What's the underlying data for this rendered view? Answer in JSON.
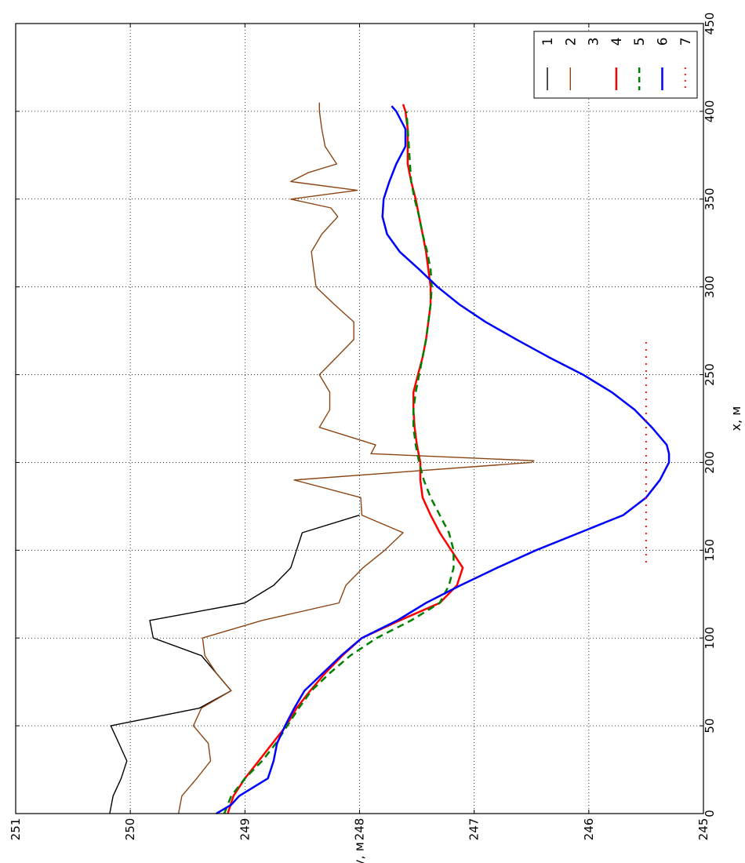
{
  "chart_data": {
    "type": "line",
    "orientation": "rotated-90-clockwise",
    "xlabel": "x, м",
    "ylabel": "y, м",
    "xlim": [
      0,
      450
    ],
    "ylim": [
      245,
      251
    ],
    "x_ticks": [
      "0",
      "50",
      "100",
      "150",
      "200",
      "250",
      "300",
      "350",
      "400",
      "450"
    ],
    "y_ticks": [
      "251",
      "250",
      "249",
      "248",
      "247",
      "246",
      "245"
    ],
    "grid": true,
    "legend_placement": "top-right",
    "series": [
      {
        "name": "1",
        "color": "#000000",
        "style": "solid",
        "width": 1.4,
        "x": [
          0,
          10,
          20,
          30,
          40,
          50,
          60,
          70,
          80,
          90,
          100,
          110,
          120,
          130,
          140,
          150,
          160,
          170
        ],
        "y": [
          250.18,
          250.15,
          250.08,
          250.03,
          250.1,
          250.17,
          249.4,
          249.12,
          249.25,
          249.38,
          249.8,
          249.83,
          249.0,
          248.75,
          248.6,
          248.55,
          248.5,
          248.0
        ]
      },
      {
        "name": "2",
        "color": "#8B4513",
        "style": "solid",
        "width": 1.4,
        "x": [
          0,
          10,
          20,
          30,
          40,
          50,
          60,
          70,
          80,
          90,
          100,
          110,
          120,
          130,
          140,
          150,
          160,
          170,
          180,
          190,
          200,
          201,
          205,
          210,
          220,
          230,
          240,
          250,
          260,
          270,
          280,
          290,
          300,
          310,
          320,
          330,
          340,
          345,
          350,
          355,
          360,
          365,
          370,
          380,
          390,
          400,
          405
        ],
        "y": [
          249.58,
          249.55,
          249.42,
          249.3,
          249.32,
          249.45,
          249.38,
          249.12,
          249.25,
          249.35,
          249.37,
          248.85,
          248.18,
          248.12,
          247.97,
          247.78,
          247.62,
          247.98,
          247.99,
          248.57,
          246.5,
          246.48,
          247.9,
          247.86,
          248.35,
          248.26,
          248.26,
          248.35,
          248.2,
          248.05,
          248.05,
          248.22,
          248.38,
          248.4,
          248.42,
          248.33,
          248.19,
          248.25,
          248.6,
          248.02,
          248.6,
          248.45,
          248.2,
          248.3,
          248.33,
          248.35,
          248.35
        ]
      },
      {
        "name": "3",
        "color": "#000000",
        "style": "none",
        "width": 0,
        "x": [],
        "y": []
      },
      {
        "name": "4",
        "color": "#ff0000",
        "style": "solid",
        "width": 2.5,
        "x": [
          0,
          10,
          20,
          30,
          40,
          50,
          60,
          70,
          80,
          90,
          100,
          110,
          120,
          130,
          140,
          150,
          160,
          170,
          180,
          190,
          200,
          210,
          220,
          230,
          240,
          250,
          260,
          270,
          280,
          290,
          300,
          310,
          320,
          330,
          340,
          350,
          360,
          370,
          380,
          390,
          400,
          404
        ],
        "y": [
          249.15,
          249.1,
          249.0,
          248.88,
          248.76,
          248.64,
          248.55,
          248.43,
          248.3,
          248.15,
          247.98,
          247.65,
          247.3,
          247.15,
          247.1,
          247.2,
          247.3,
          247.38,
          247.45,
          247.47,
          247.47,
          247.5,
          247.52,
          247.53,
          247.53,
          247.49,
          247.45,
          247.42,
          247.4,
          247.38,
          247.38,
          247.4,
          247.42,
          247.45,
          247.48,
          247.51,
          247.55,
          247.58,
          247.58,
          247.58,
          247.6,
          247.62
        ]
      },
      {
        "name": "5",
        "color": "#008000",
        "style": "dashed",
        "width": 2.5,
        "x": [
          0,
          10,
          20,
          30,
          40,
          50,
          60,
          70,
          80,
          90,
          100,
          110,
          120,
          130,
          140,
          150,
          160,
          170,
          180,
          190,
          200,
          210,
          220,
          230,
          240,
          250,
          260,
          270,
          280,
          290,
          300,
          310,
          320,
          330,
          340,
          350,
          360,
          370,
          380,
          390,
          400
        ],
        "y": [
          249.18,
          249.12,
          249.0,
          248.85,
          248.73,
          248.63,
          248.53,
          248.42,
          248.26,
          248.08,
          247.85,
          247.55,
          247.3,
          247.22,
          247.18,
          247.18,
          247.22,
          247.3,
          247.38,
          247.44,
          247.48,
          247.51,
          247.53,
          247.53,
          247.51,
          247.48,
          247.45,
          247.42,
          247.4,
          247.38,
          247.37,
          247.38,
          247.41,
          247.45,
          247.48,
          247.52,
          247.55,
          247.56,
          247.57,
          247.58,
          247.59
        ]
      },
      {
        "name": "6",
        "color": "#0000ff",
        "style": "solid",
        "width": 2.5,
        "x": [
          0,
          5,
          10,
          20,
          30,
          40,
          50,
          60,
          70,
          80,
          90,
          100,
          110,
          120,
          130,
          140,
          150,
          160,
          170,
          180,
          190,
          200,
          205,
          210,
          220,
          230,
          240,
          250,
          260,
          270,
          280,
          290,
          300,
          310,
          320,
          330,
          340,
          350,
          360,
          370,
          380,
          390,
          400,
          403
        ],
        "y": [
          249.25,
          249.12,
          249.05,
          248.8,
          248.75,
          248.72,
          248.65,
          248.57,
          248.48,
          248.32,
          248.16,
          247.98,
          247.67,
          247.42,
          247.12,
          246.8,
          246.46,
          246.08,
          245.7,
          245.5,
          245.38,
          245.3,
          245.3,
          245.32,
          245.45,
          245.6,
          245.8,
          246.05,
          246.35,
          246.63,
          246.9,
          247.13,
          247.32,
          247.48,
          247.65,
          247.76,
          247.8,
          247.79,
          247.74,
          247.68,
          247.6,
          247.6,
          247.68,
          247.72
        ]
      },
      {
        "name": "7",
        "color": "#ff0000",
        "style": "dotted",
        "width": 1.8,
        "x": [
          143,
          270
        ],
        "y": [
          245.5,
          245.5
        ]
      }
    ]
  }
}
